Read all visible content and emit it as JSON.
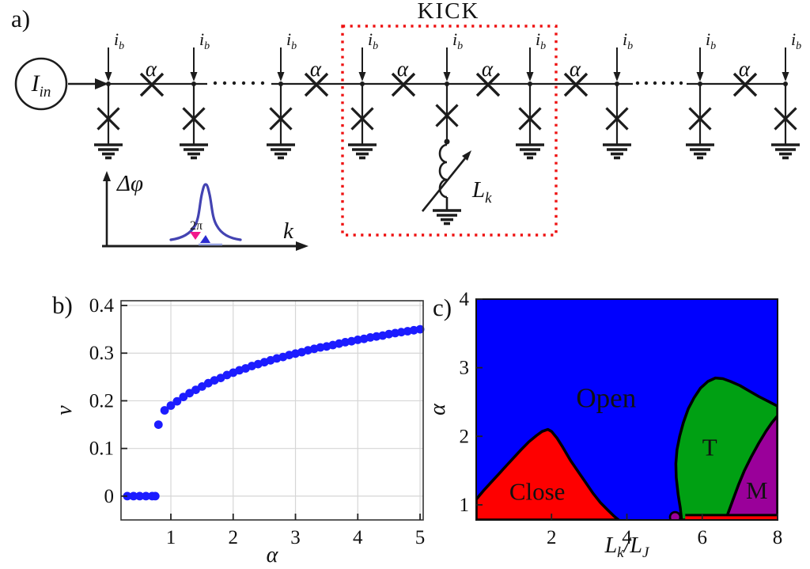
{
  "figure": {
    "panel_a_label": "a)",
    "panel_b_label": "b)",
    "panel_c_label": "c)"
  },
  "circuit": {
    "source": {
      "main": "I",
      "sub": "in"
    },
    "bias": {
      "main": "i",
      "sub": "b"
    },
    "alpha_label": "α",
    "kick_label": "KICK",
    "kick_color": "#ee1111",
    "inductor": {
      "main": "L",
      "sub": "k"
    },
    "inset": {
      "ylabel": "Δφ",
      "xlabel": "k",
      "width_label": "2π",
      "curve_color": "#4343b2",
      "marker_pink": "#f2188c",
      "marker_blue": "#2b2bd0",
      "marker_line_color": "#97a3e0"
    }
  },
  "chart_data": [
    {
      "panel": "b",
      "type": "scatter",
      "title": "",
      "xlabel": "α",
      "ylabel": "ν",
      "xlim": [
        0.2,
        5.05
      ],
      "ylim": [
        -0.05,
        0.41
      ],
      "grid": true,
      "legend_position": "none",
      "marker": {
        "shape": "circle",
        "color": "#1c1cff",
        "radius_px": 5.4
      },
      "xtick_vals": [
        1,
        2,
        3,
        4,
        5
      ],
      "xtick_labels": [
        "1",
        "2",
        "3",
        "4",
        "5"
      ],
      "ytick_vals": [
        0,
        0.1,
        0.2,
        0.3,
        0.4
      ],
      "ytick_labels": [
        "0",
        "0.1",
        "0.2",
        "0.3",
        "0.4"
      ],
      "x": [
        0.3,
        0.4,
        0.5,
        0.6,
        0.7,
        0.75,
        0.8,
        0.9,
        1.0,
        1.1,
        1.2,
        1.3,
        1.4,
        1.5,
        1.6,
        1.7,
        1.8,
        1.9,
        2.0,
        2.1,
        2.2,
        2.3,
        2.4,
        2.5,
        2.6,
        2.7,
        2.8,
        2.9,
        3.0,
        3.1,
        3.2,
        3.3,
        3.4,
        3.5,
        3.6,
        3.7,
        3.8,
        3.9,
        4.0,
        4.1,
        4.2,
        4.3,
        4.4,
        4.5,
        4.6,
        4.7,
        4.8,
        4.9,
        5.0
      ],
      "y": [
        0,
        0,
        0,
        0,
        0,
        0,
        0.15,
        0.18,
        0.19,
        0.199,
        0.208,
        0.216,
        0.223,
        0.23,
        0.237,
        0.243,
        0.248,
        0.254,
        0.259,
        0.264,
        0.268,
        0.273,
        0.277,
        0.281,
        0.285,
        0.289,
        0.292,
        0.296,
        0.299,
        0.302,
        0.306,
        0.309,
        0.312,
        0.314,
        0.317,
        0.32,
        0.323,
        0.325,
        0.328,
        0.33,
        0.333,
        0.335,
        0.337,
        0.34,
        0.342,
        0.344,
        0.346,
        0.348,
        0.35
      ]
    },
    {
      "panel": "c",
      "type": "area",
      "subtype": "phase-diagram",
      "title": "",
      "xlabel": "L_k/L_J",
      "xlabel_parts": [
        {
          "t": "L",
          "sub": false
        },
        {
          "t": "k",
          "sub": true
        },
        {
          "t": "/",
          "sub": false
        },
        {
          "t": "L",
          "sub": false
        },
        {
          "t": "J",
          "sub": true
        }
      ],
      "ylabel": "α",
      "xlim": [
        0,
        8
      ],
      "ylim": [
        0.78,
        4.0
      ],
      "grid": false,
      "xtick_vals": [
        2,
        4,
        6,
        8
      ],
      "xtick_labels": [
        "2",
        "4",
        "6",
        "8"
      ],
      "ytick_vals": [
        1,
        2,
        3,
        4
      ],
      "ytick_labels": [
        "1",
        "2",
        "3",
        "4"
      ],
      "boundary_color": "#000000",
      "regions": [
        {
          "name": "open",
          "kind": "background",
          "label": "Open",
          "color": "#0000fe",
          "label_color": "#ffffff",
          "label_pos": [
            3.45,
            2.55
          ]
        },
        {
          "name": "close",
          "kind": "blob",
          "label": "Close",
          "color": "#fe0000",
          "label_color": "#000000",
          "label_pos": [
            1.62,
            1.2
          ],
          "polygon": [
            [
              0,
              0.78
            ],
            [
              0,
              1.08
            ],
            [
              0.2,
              1.21
            ],
            [
              0.4,
              1.33
            ],
            [
              0.6,
              1.45
            ],
            [
              0.8,
              1.57
            ],
            [
              1.0,
              1.69
            ],
            [
              1.2,
              1.81
            ],
            [
              1.4,
              1.92
            ],
            [
              1.6,
              2.01
            ],
            [
              1.75,
              2.07
            ],
            [
              1.9,
              2.1
            ],
            [
              2.0,
              2.07
            ],
            [
              2.15,
              1.97
            ],
            [
              2.3,
              1.84
            ],
            [
              2.5,
              1.65
            ],
            [
              2.7,
              1.49
            ],
            [
              2.9,
              1.33
            ],
            [
              3.1,
              1.17
            ],
            [
              3.3,
              1.03
            ],
            [
              3.5,
              0.92
            ],
            [
              3.65,
              0.84
            ],
            [
              3.78,
              0.78
            ]
          ]
        },
        {
          "name": "t",
          "kind": "blob",
          "label": "T",
          "color": "#00a013",
          "label_color": "#000000",
          "label_pos": [
            6.2,
            1.85
          ],
          "polygon": [
            [
              5.45,
              0.78
            ],
            [
              5.42,
              0.95
            ],
            [
              5.36,
              1.15
            ],
            [
              5.31,
              1.4
            ],
            [
              5.3,
              1.6
            ],
            [
              5.33,
              1.8
            ],
            [
              5.4,
              2.0
            ],
            [
              5.5,
              2.2
            ],
            [
              5.63,
              2.4
            ],
            [
              5.78,
              2.56
            ],
            [
              5.95,
              2.7
            ],
            [
              6.15,
              2.8
            ],
            [
              6.35,
              2.85
            ],
            [
              6.55,
              2.84
            ],
            [
              6.75,
              2.8
            ],
            [
              7.0,
              2.74
            ],
            [
              7.25,
              2.66
            ],
            [
              7.5,
              2.58
            ],
            [
              7.75,
              2.51
            ],
            [
              8,
              2.44
            ],
            [
              8,
              0.78
            ]
          ]
        },
        {
          "name": "m",
          "kind": "blob",
          "label": "M",
          "color": "#9a009a",
          "label_color": "#000000",
          "label_pos": [
            7.45,
            1.22
          ],
          "polygon": [
            [
              6.62,
              0.78
            ],
            [
              6.7,
              0.9
            ],
            [
              6.82,
              1.08
            ],
            [
              6.97,
              1.3
            ],
            [
              7.12,
              1.5
            ],
            [
              7.3,
              1.7
            ],
            [
              7.5,
              1.9
            ],
            [
              7.7,
              2.08
            ],
            [
              7.85,
              2.2
            ],
            [
              8,
              2.3
            ],
            [
              8,
              0.78
            ]
          ]
        },
        {
          "name": "close-strip",
          "kind": "strip",
          "label": "",
          "color": "#fe0000",
          "polygon": [
            [
              5.55,
              0.78
            ],
            [
              5.55,
              0.85
            ],
            [
              8,
              0.85
            ],
            [
              8,
              0.78
            ]
          ]
        },
        {
          "name": "m-islet",
          "kind": "islet",
          "label": "",
          "color": "#9a009a",
          "center": [
            5.28,
            0.82
          ],
          "radius_px": 6.5
        }
      ]
    }
  ]
}
